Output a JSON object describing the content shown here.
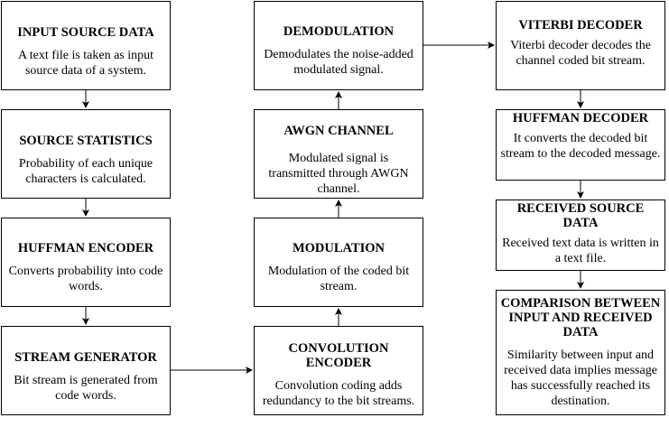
{
  "blocks": {
    "input": {
      "title": "INPUT SOURCE DATA",
      "text": "A text file is taken as input source data of a system."
    },
    "stats": {
      "title": "SOURCE STATISTICS",
      "text": "Probability of each unique characters is calculated."
    },
    "huffman_encoder": {
      "title": "HUFFMAN ENCODER",
      "text": "Converts probability into code words."
    },
    "stream_generator": {
      "title": "STREAM GENERATOR",
      "text": "Bit stream is generated from code words."
    },
    "demodulation": {
      "title": "DEMODULATION",
      "text": "Demodulates the noise-added modulated signal."
    },
    "awgn": {
      "title": "AWGN CHANNEL",
      "text": "Modulated signal is transmitted through AWGN channel."
    },
    "modulation": {
      "title": "MODULATION",
      "text": "Modulation of the coded bit stream."
    },
    "convolution_encoder": {
      "title": "CONVOLUTION ENCODER",
      "text": "Convolution coding adds redundancy to the bit streams."
    },
    "viterbi": {
      "title": "VITERBI DECODER",
      "text": "Viterbi decoder decodes the channel coded bit stream."
    },
    "huffman_decoder": {
      "title": "HUFFMAN DECODER",
      "text": "It converts the decoded bit stream to the decoded message."
    },
    "received": {
      "title": "RECEIVED SOURCE DATA",
      "text": "Received text data is written in a text file."
    },
    "comparison": {
      "title": "COMPARISON BETWEEN INPUT AND RECEIVED DATA",
      "text": "Similarity between input and received data implies message has successfully reached its destination."
    }
  },
  "colors": {
    "stroke": "#000000",
    "fill": "#ffffff",
    "text": "#000000"
  }
}
